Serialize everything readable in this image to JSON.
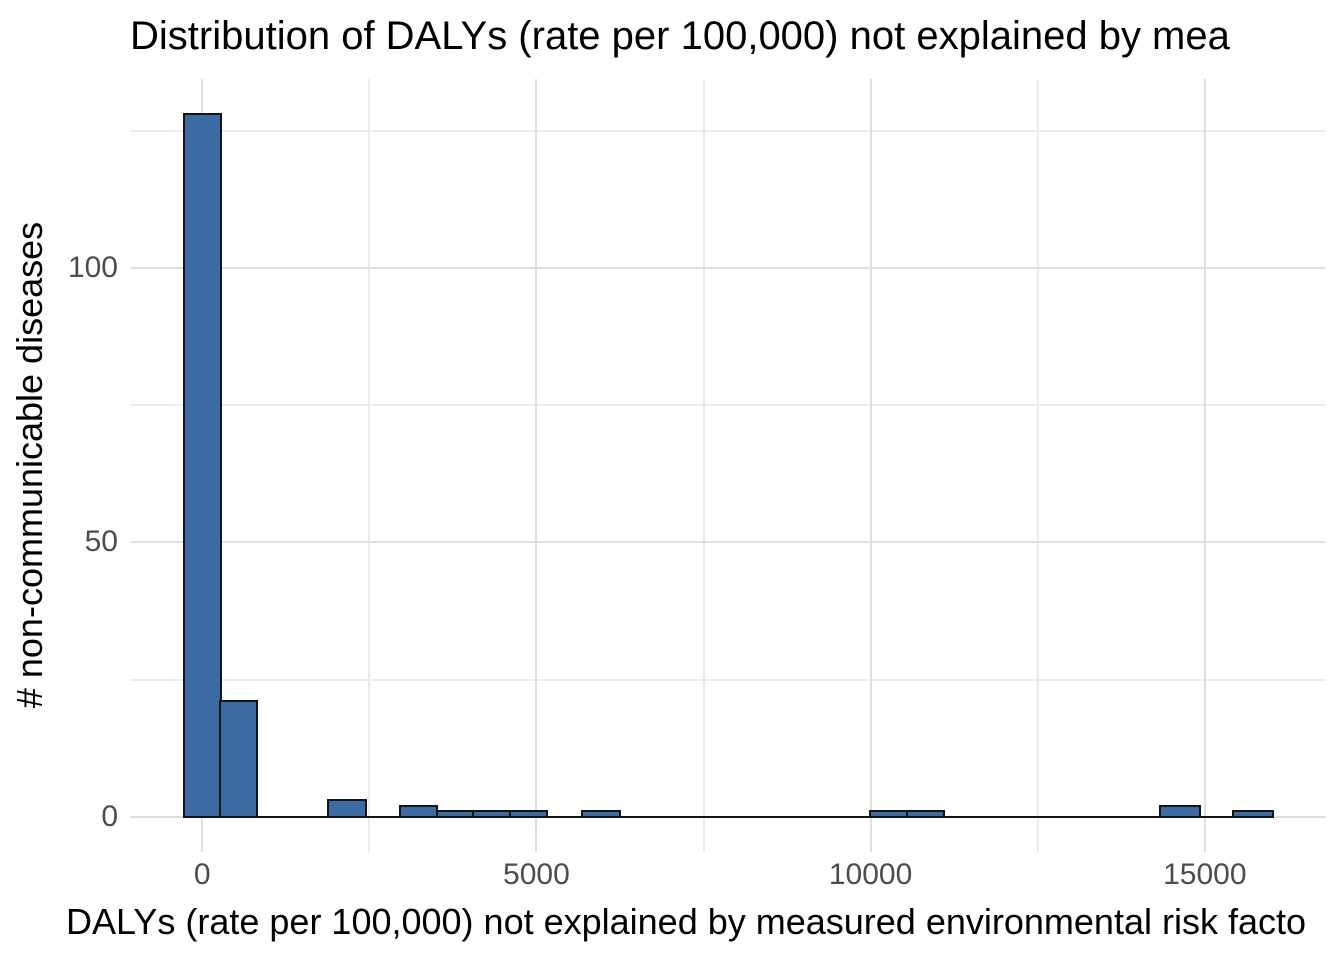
{
  "chart_data": {
    "type": "histogram",
    "title": "Distribution of DALYs (rate per 100,000) not explained by mea",
    "xlabel": "DALYs (rate per 100,000) not explained by measured environmental risk facto",
    "ylabel": "# non-communicable diseases",
    "xlim": [
      -1080,
      16813
    ],
    "ylim": [
      -6.4,
      134.4
    ],
    "x_major_ticks": [
      {
        "value": 0,
        "label": "0"
      },
      {
        "value": 5000,
        "label": "5000"
      },
      {
        "value": 10000,
        "label": "10000"
      },
      {
        "value": 15000,
        "label": "15000"
      }
    ],
    "x_minor_ticks": [
      2500,
      7500,
      12500
    ],
    "y_major_ticks": [
      {
        "value": 0,
        "label": "0"
      },
      {
        "value": 50,
        "label": "50"
      },
      {
        "value": 100,
        "label": "100"
      }
    ],
    "y_minor_ticks": [
      25,
      75,
      125
    ],
    "bin_width_approx": 545,
    "bins": [
      {
        "x0": -270,
        "x1": 270,
        "count": 128
      },
      {
        "x0": 270,
        "x1": 810,
        "count": 21
      },
      {
        "x0": 1890,
        "x1": 2440,
        "count": 3
      },
      {
        "x0": 2960,
        "x1": 3510,
        "count": 2
      },
      {
        "x0": 3510,
        "x1": 4060,
        "count": 1
      },
      {
        "x0": 4060,
        "x1": 4610,
        "count": 1
      },
      {
        "x0": 4610,
        "x1": 5150,
        "count": 1
      },
      {
        "x0": 5690,
        "x1": 6240,
        "count": 1
      },
      {
        "x0": 10000,
        "x1": 10550,
        "count": 1
      },
      {
        "x0": 10550,
        "x1": 11100,
        "count": 1
      },
      {
        "x0": 14330,
        "x1": 14930,
        "count": 2
      },
      {
        "x0": 15430,
        "x1": 16010,
        "count": 1
      }
    ],
    "zero_baseline_range": [
      -270,
      16010
    ],
    "grid": "on",
    "legend": "none",
    "colors": {
      "bar_fill": "#3A6CA3",
      "bar_stroke": "#141414",
      "grid_major": "#DFDFDF",
      "grid_minor": "#EBEBEB",
      "tick_text": "#4D4D4D",
      "title_text": "#000000",
      "background": "#FFFFFF"
    }
  }
}
